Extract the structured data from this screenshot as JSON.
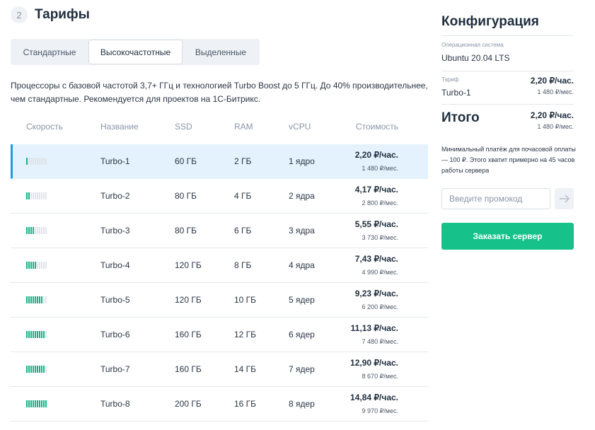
{
  "header": {
    "step_number": "2",
    "title": "Тарифы"
  },
  "tabs": [
    {
      "label": "Стандартные",
      "active": false
    },
    {
      "label": "Высокочастотные",
      "active": true
    },
    {
      "label": "Выделенные",
      "active": false
    }
  ],
  "description": "Процессоры с базовой частотой 3,7+ ГГц и технологией Turbo Boost до 5 ГГц. До 40% производительнее, чем стандартные. Рекомендуется для проектов на 1С-Битрикс.",
  "table": {
    "columns": [
      "Скорость",
      "Название",
      "SSD",
      "RAM",
      "vCPU",
      "Стоимость"
    ],
    "speed_max": 10,
    "rows": [
      {
        "speed": 1,
        "name": "Turbo-1",
        "ssd": "60 ГБ",
        "ram": "2 ГБ",
        "vcpu": "1 ядро",
        "price": "2,20 ₽/час.",
        "price_month": "1 480 ₽/мес.",
        "selected": true
      },
      {
        "speed": 2,
        "name": "Turbo-2",
        "ssd": "80 ГБ",
        "ram": "4 ГБ",
        "vcpu": "2 ядра",
        "price": "4,17 ₽/час.",
        "price_month": "2 800 ₽/мес.",
        "selected": false
      },
      {
        "speed": 4,
        "name": "Turbo-3",
        "ssd": "80 ГБ",
        "ram": "6 ГБ",
        "vcpu": "3 ядра",
        "price": "5,55 ₽/час.",
        "price_month": "3 730 ₽/мес.",
        "selected": false
      },
      {
        "speed": 5,
        "name": "Turbo-4",
        "ssd": "120 ГБ",
        "ram": "8 ГБ",
        "vcpu": "4 ядра",
        "price": "7,43 ₽/час.",
        "price_month": "4 990 ₽/мес.",
        "selected": false
      },
      {
        "speed": 8,
        "name": "Turbo-5",
        "ssd": "120 ГБ",
        "ram": "10 ГБ",
        "vcpu": "5 ядер",
        "price": "9,23 ₽/час.",
        "price_month": "6 200 ₽/мес.",
        "selected": false
      },
      {
        "speed": 9,
        "name": "Turbo-6",
        "ssd": "160 ГБ",
        "ram": "12 ГБ",
        "vcpu": "6 ядер",
        "price": "11,13 ₽/час.",
        "price_month": "7 480 ₽/мес.",
        "selected": false
      },
      {
        "speed": 9,
        "name": "Turbo-7",
        "ssd": "160 ГБ",
        "ram": "14 ГБ",
        "vcpu": "7 ядер",
        "price": "12,90 ₽/час.",
        "price_month": "8 670 ₽/мес.",
        "selected": false
      },
      {
        "speed": 10,
        "name": "Turbo-8",
        "ssd": "200 ГБ",
        "ram": "16 ГБ",
        "vcpu": "8 ядер",
        "price": "14,84 ₽/час.",
        "price_month": "9 970 ₽/мес.",
        "selected": false
      }
    ]
  },
  "config": {
    "title": "Конфигурация",
    "os_label": "Операционная система",
    "os_value": "Ubuntu 20.04 LTS",
    "tariff_label": "Тариф",
    "tariff_value": "Turbo-1",
    "tariff_price": "2,20 ₽/час.",
    "tariff_price_month": "1 480 ₽/мес.",
    "total_label": "Итого",
    "total_price": "2,20 ₽/час.",
    "total_price_month": "1 480 ₽/мес."
  },
  "note": "Минимальный платёж для почасовой оплаты — 100 ₽. Этого хватит примерно на 45 часов работы сервера",
  "promo": {
    "placeholder": "Введите промокод",
    "value": ""
  },
  "order_button": "Заказать сервер",
  "colors": {
    "accent_green": "#16c28a",
    "speed_on": "#14b384",
    "selected_row": "#e3f2fc",
    "selected_border": "#1e9be8"
  }
}
